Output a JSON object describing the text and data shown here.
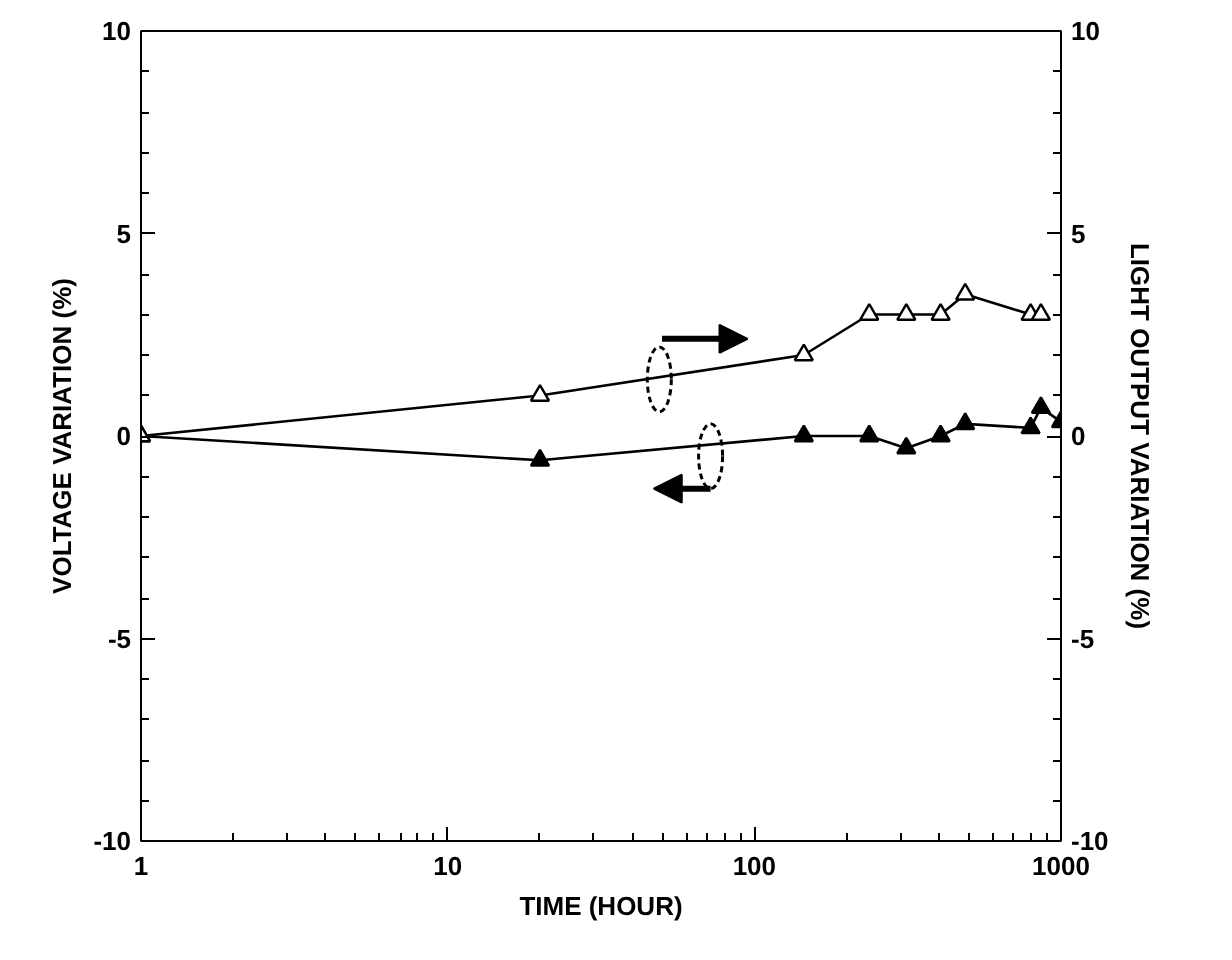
{
  "chart_data": {
    "type": "line",
    "xlabel": "TIME (HOUR)",
    "ylabel": "VOLTAGE VARIATION (%)",
    "y2label": "LIGHT OUTPUT VARIATION (%)",
    "log": "x",
    "xlim": [
      1,
      1000
    ],
    "xticks": [
      1,
      10,
      100,
      1000
    ],
    "ylim": [
      -10,
      10
    ],
    "yticks": [
      -10,
      -5,
      0,
      5,
      10
    ],
    "y2lim": [
      -10,
      10
    ],
    "y2ticks": [
      -10,
      -5,
      0,
      5,
      10
    ],
    "grid": false,
    "marker": "triangle",
    "line_style": "solid",
    "series": [
      {
        "color": "#000000",
        "x": [
          1,
          20,
          145,
          237,
          313,
          405,
          487,
          796,
          860,
          1000
        ],
        "values": [
          0,
          -0.6,
          0,
          0,
          -0.3,
          0,
          0.3,
          0.2,
          0.7,
          0.35
        ]
      },
      {
        "color": "#000000",
        "axis": "y2",
        "x": [
          1,
          20,
          145,
          237,
          313,
          405,
          487,
          796,
          860
        ],
        "values": [
          0,
          1,
          2,
          3,
          3,
          3,
          3.5,
          3,
          3
        ]
      }
    ]
  }
}
